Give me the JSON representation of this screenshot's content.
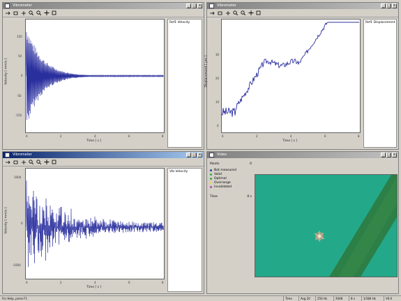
{
  "windows": {
    "w1": {
      "title": "Vibrometer",
      "legend": "Ref1 Velocity",
      "ylabel": "Velocity [ mm/s ]",
      "xlabel": "Time [ s ]",
      "yticks": [
        "150",
        "50",
        "0",
        "-50",
        "-150"
      ],
      "xticks": [
        "0",
        "2",
        "4",
        "6",
        "8"
      ]
    },
    "w2": {
      "title": "Vibrometer",
      "legend": "Ref1 Displacement",
      "ylabel": "Displacement [ µm ]",
      "xlabel": "Time [ s ]",
      "yticks": [
        "30",
        "20",
        "10",
        "0"
      ],
      "xticks": [
        "0",
        "2",
        "4",
        "6",
        "8"
      ]
    },
    "w3": {
      "title": "Vibrometer",
      "legend": "Vib Velocity",
      "ylabel": "Velocity [ mm/s ]",
      "xlabel": "Time [ s ]",
      "yticks": [
        "1000",
        "0",
        "-1000"
      ],
      "xticks": [
        "0",
        "2",
        "4",
        "6",
        "8"
      ]
    },
    "w4": {
      "title": "Video",
      "points_label": "Points",
      "points_value": "0",
      "status_items": [
        {
          "label": "Not measured",
          "color": "#2a3fa8"
        },
        {
          "label": "Valid",
          "color": "#2fa84a"
        },
        {
          "label": "Optimal",
          "color": "#2fa84a"
        },
        {
          "label": "Overrange",
          "color": "#e8d84a"
        },
        {
          "label": "Invalidated",
          "color": "#b040b0"
        }
      ],
      "time_label": "Time",
      "time_value": "0 s"
    }
  },
  "statusbar": {
    "message": "For Help, press F1",
    "cells": [
      "Time",
      "Avg 20",
      "250 Hz",
      "2048",
      "8 s",
      "1/384 Hz",
      "V0.0"
    ]
  },
  "colors": {
    "trace": "#2a2f9e",
    "video_bg": "#23a88a",
    "video_stripe": "#2e7a3e"
  }
}
